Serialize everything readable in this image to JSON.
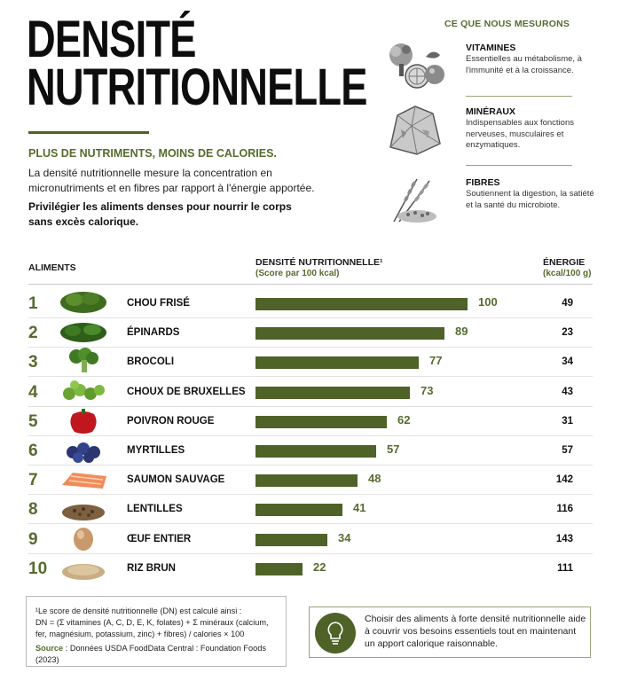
{
  "header": {
    "title_line1": "DENSITÉ",
    "title_line2": "NUTRITIONNELLE",
    "subtitle": "PLUS DE NUTRIMENTS, MOINS DE CALORIES.",
    "description": "La densité nutritionnelle mesure la concentration en micronutriments et en fibres par rapport à l'énergie apportée.",
    "emphasis": "Privilégier les aliments denses pour nourrir le corps sans excès calorique."
  },
  "measures": {
    "heading": "CE QUE NOUS MESURONS",
    "items": [
      {
        "title": "VITAMINES",
        "text": "Essentielles au métabolisme, à l'immunité et à la croissance.",
        "icon": "fruit-vegetable-illustration"
      },
      {
        "title": "MINÉRAUX",
        "text": "Indispensables aux fonctions nerveuses, musculaires et enzymatiques.",
        "icon": "mineral-rock-illustration"
      },
      {
        "title": "FIBRES",
        "text": "Soutiennent la digestion, la satiété et la santé du microbiote.",
        "icon": "grain-wheat-illustration"
      }
    ]
  },
  "table": {
    "col_foods": "ALIMENTS",
    "col_density": "DENSITÉ NUTRITIONNELLE¹",
    "col_density_sub": "(Score par 100 kcal)",
    "col_energy": "ÉNERGIE",
    "col_energy_sub": "(kcal/100 g)"
  },
  "chart_data": {
    "type": "bar",
    "orientation": "horizontal",
    "categories": [
      "CHOU FRISÉ",
      "ÉPINARDS",
      "BROCOLI",
      "CHOUX DE BRUXELLES",
      "POIVRON ROUGE",
      "MYRTILLES",
      "SAUMON SAUVAGE",
      "LENTILLES",
      "ŒUF ENTIER",
      "RIZ BRUN"
    ],
    "ranks": [
      "1",
      "2",
      "3",
      "4",
      "5",
      "6",
      "7",
      "8",
      "9",
      "10"
    ],
    "values": [
      100,
      89,
      77,
      73,
      62,
      57,
      48,
      41,
      34,
      22
    ],
    "energy_kcal": [
      49,
      23,
      34,
      43,
      31,
      57,
      142,
      116,
      143,
      111
    ],
    "xlim": [
      0,
      100
    ],
    "bar_color": "#4f6228",
    "grid": false
  },
  "footnote": {
    "line1": "¹Le score de densité nutritionnelle (DN) est calculé ainsi :",
    "line2": "DN = (Σ vitamines (A, C, D, E, K, folates) + Σ minéraux (calcium, fer, magnésium, potassium, zinc) + fibres) / calories × 100",
    "source_label": "Source",
    "source_text": " : Données USDA FoodData Central : Foundation Foods (2023)"
  },
  "tip": {
    "text": "Choisir des aliments à forte densité nutritionnelle aide à couvrir vos besoins essentiels tout en maintenant un apport calorique raisonnable.",
    "icon": "lightbulb-icon"
  },
  "colors": {
    "accent": "#566b2e",
    "bar": "#4f6228"
  }
}
